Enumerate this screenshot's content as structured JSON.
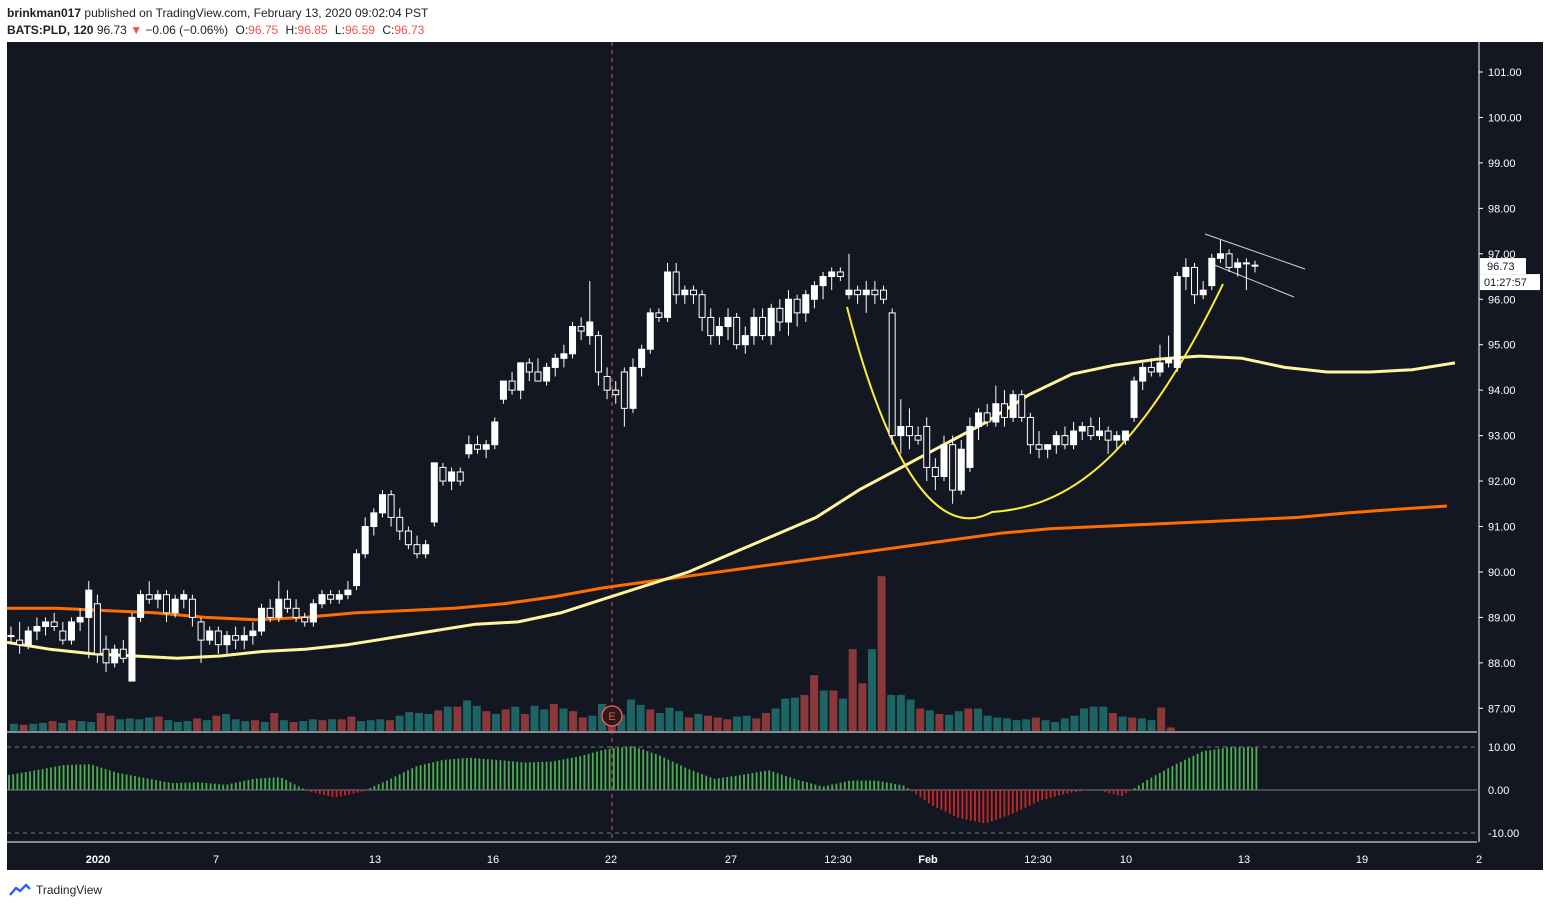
{
  "header": {
    "author": "brinkman017",
    "published_text": "published on TradingView.com, February 13, 2020 09:02:04 PST",
    "symbol": "BATS:PLD, 120",
    "last_price": "96.73",
    "change_arrow": "▼",
    "change": "−0.06 (−0.06%)",
    "open_label": "O:",
    "open": "96.75",
    "high_label": "H:",
    "high": "96.85",
    "low_label": "L:",
    "low": "96.59",
    "close_label": "C:",
    "close": "96.73"
  },
  "chart_data": {
    "type": "candlestick",
    "symbol": "BATS:PLD",
    "interval": "120",
    "price_axis": {
      "min": 86.5,
      "max": 101.5,
      "ticks": [
        "101.00",
        "100.00",
        "99.00",
        "98.00",
        "97.00",
        "96.00",
        "95.00",
        "94.00",
        "93.00",
        "92.00",
        "91.00",
        "90.00",
        "89.00",
        "88.00",
        "87.00"
      ]
    },
    "osc_axis": {
      "ticks": [
        "10.00",
        "0.00",
        "-10.00"
      ]
    },
    "time_labels": [
      "2020",
      "7",
      "13",
      "16",
      "22",
      "27",
      "12:30",
      "Feb",
      "12:30",
      "10",
      "13",
      "19",
      "2"
    ],
    "price_tag": "96.73",
    "countdown_tag": "01:27:57",
    "event_marker": "E",
    "colors": {
      "background": "#131722",
      "candle_up": "#ffffff",
      "candle_down": "#ffffff",
      "ma_fast": "#fff59d",
      "ma_slow": "#ff6d00",
      "curve": "#ffeb3b",
      "vol_up": "#26a69a",
      "vol_down": "#ef5350",
      "osc_up": "#00e676",
      "osc_down": "#b71c1c"
    },
    "ohlc": [
      [
        88.6,
        88.8,
        88.4,
        88.6
      ],
      [
        88.5,
        88.9,
        88.2,
        88.4
      ],
      [
        88.4,
        88.8,
        88.3,
        88.7
      ],
      [
        88.7,
        89.0,
        88.5,
        88.8
      ],
      [
        88.8,
        89.0,
        88.6,
        88.9
      ],
      [
        88.9,
        89.1,
        88.7,
        88.8
      ],
      [
        88.7,
        88.9,
        88.4,
        88.5
      ],
      [
        88.5,
        89.0,
        88.4,
        88.9
      ],
      [
        88.9,
        89.2,
        88.7,
        89.0
      ],
      [
        89.0,
        89.8,
        88.1,
        89.6
      ],
      [
        89.3,
        89.5,
        88.0,
        88.2
      ],
      [
        88.3,
        88.6,
        87.8,
        88.0
      ],
      [
        88.0,
        88.4,
        87.9,
        88.3
      ],
      [
        88.3,
        88.5,
        88.0,
        88.1
      ],
      [
        87.6,
        89.1,
        87.6,
        89.0
      ],
      [
        89.0,
        89.6,
        88.9,
        89.5
      ],
      [
        89.5,
        89.8,
        89.3,
        89.4
      ],
      [
        89.4,
        89.6,
        89.2,
        89.5
      ],
      [
        89.5,
        89.6,
        88.9,
        89.1
      ],
      [
        89.1,
        89.5,
        89.0,
        89.4
      ],
      [
        89.4,
        89.6,
        89.2,
        89.5
      ],
      [
        89.4,
        89.5,
        88.8,
        89.0
      ],
      [
        88.9,
        89.0,
        88.0,
        88.5
      ],
      [
        88.5,
        88.8,
        88.4,
        88.7
      ],
      [
        88.7,
        88.8,
        88.2,
        88.4
      ],
      [
        88.4,
        88.7,
        88.2,
        88.6
      ],
      [
        88.6,
        88.8,
        88.3,
        88.5
      ],
      [
        88.5,
        88.8,
        88.3,
        88.6
      ],
      [
        88.6,
        88.9,
        88.4,
        88.7
      ],
      [
        88.7,
        89.3,
        88.6,
        89.2
      ],
      [
        89.2,
        89.4,
        88.9,
        89.0
      ],
      [
        89.0,
        89.8,
        88.9,
        89.4
      ],
      [
        89.4,
        89.6,
        89.1,
        89.2
      ],
      [
        89.2,
        89.4,
        88.9,
        89.0
      ],
      [
        89.0,
        89.1,
        88.8,
        88.9
      ],
      [
        88.9,
        89.4,
        88.8,
        89.3
      ],
      [
        89.3,
        89.6,
        89.2,
        89.5
      ],
      [
        89.5,
        89.6,
        89.3,
        89.4
      ],
      [
        89.4,
        89.6,
        89.3,
        89.5
      ],
      [
        89.5,
        89.8,
        89.4,
        89.6
      ],
      [
        89.7,
        90.5,
        89.6,
        90.4
      ],
      [
        90.4,
        91.2,
        90.3,
        91.0
      ],
      [
        91.0,
        91.4,
        90.8,
        91.3
      ],
      [
        91.3,
        91.8,
        91.2,
        91.7
      ],
      [
        91.7,
        91.8,
        91.0,
        91.2
      ],
      [
        91.2,
        91.4,
        90.7,
        90.9
      ],
      [
        90.9,
        91.0,
        90.5,
        90.6
      ],
      [
        90.6,
        90.8,
        90.3,
        90.4
      ],
      [
        90.4,
        90.7,
        90.3,
        90.6
      ],
      [
        91.1,
        92.4,
        91.0,
        92.4
      ],
      [
        92.3,
        92.4,
        91.9,
        92.0
      ],
      [
        92.0,
        92.3,
        91.8,
        92.2
      ],
      [
        92.2,
        92.3,
        91.9,
        92.0
      ],
      [
        92.6,
        93.0,
        92.5,
        92.8
      ],
      [
        92.8,
        93.0,
        92.6,
        92.7
      ],
      [
        92.7,
        92.9,
        92.5,
        92.8
      ],
      [
        92.8,
        93.4,
        92.7,
        93.3
      ],
      [
        93.8,
        94.2,
        93.7,
        94.2
      ],
      [
        94.2,
        94.4,
        93.9,
        94.0
      ],
      [
        94.0,
        94.6,
        93.8,
        94.6
      ],
      [
        94.6,
        94.7,
        94.2,
        94.4
      ],
      [
        94.4,
        94.7,
        94.2,
        94.2
      ],
      [
        94.2,
        94.6,
        94.1,
        94.5
      ],
      [
        94.5,
        94.8,
        94.3,
        94.7
      ],
      [
        94.7,
        95.0,
        94.5,
        94.8
      ],
      [
        94.8,
        95.5,
        94.7,
        95.4
      ],
      [
        95.4,
        95.6,
        95.1,
        95.3
      ],
      [
        95.2,
        96.4,
        95.0,
        95.5
      ],
      [
        95.2,
        95.3,
        94.1,
        94.4
      ],
      [
        94.3,
        94.5,
        93.8,
        94.0
      ],
      [
        94.0,
        94.2,
        93.7,
        93.9
      ],
      [
        94.4,
        94.5,
        93.2,
        93.6
      ],
      [
        93.6,
        94.7,
        93.5,
        94.5
      ],
      [
        94.5,
        95.0,
        94.3,
        94.9
      ],
      [
        94.9,
        95.8,
        94.8,
        95.7
      ],
      [
        95.7,
        95.8,
        95.5,
        95.6
      ],
      [
        95.6,
        96.8,
        95.5,
        96.6
      ],
      [
        96.6,
        96.8,
        95.9,
        96.1
      ],
      [
        96.1,
        96.3,
        95.9,
        96.2
      ],
      [
        96.2,
        96.3,
        95.9,
        96.1
      ],
      [
        96.1,
        96.2,
        95.3,
        95.6
      ],
      [
        95.6,
        95.8,
        95.0,
        95.2
      ],
      [
        95.2,
        95.6,
        95.0,
        95.4
      ],
      [
        95.4,
        95.8,
        95.1,
        95.6
      ],
      [
        95.6,
        95.7,
        94.9,
        95.0
      ],
      [
        95.0,
        95.4,
        94.8,
        95.2
      ],
      [
        95.2,
        95.8,
        95.0,
        95.6
      ],
      [
        95.6,
        95.8,
        95.1,
        95.2
      ],
      [
        95.2,
        95.9,
        95.0,
        95.8
      ],
      [
        95.8,
        96.0,
        95.3,
        95.5
      ],
      [
        95.5,
        96.2,
        95.2,
        96.0
      ],
      [
        96.0,
        96.1,
        95.4,
        95.7
      ],
      [
        95.7,
        96.2,
        95.5,
        96.1
      ],
      [
        96.0,
        96.4,
        95.8,
        96.3
      ],
      [
        96.3,
        96.6,
        96.0,
        96.5
      ],
      [
        96.5,
        96.7,
        96.2,
        96.6
      ],
      [
        96.6,
        96.7,
        96.4,
        96.5
      ],
      [
        96.1,
        97.0,
        96.0,
        96.2
      ],
      [
        96.2,
        96.3,
        95.9,
        96.1
      ],
      [
        96.1,
        96.4,
        95.7,
        96.2
      ],
      [
        96.2,
        96.4,
        95.9,
        96.1
      ],
      [
        96.2,
        96.3,
        95.9,
        96.0
      ],
      [
        95.7,
        95.8,
        92.8,
        93.0
      ],
      [
        93.0,
        93.8,
        92.6,
        93.2
      ],
      [
        93.2,
        93.6,
        92.7,
        93.0
      ],
      [
        93.0,
        93.2,
        92.8,
        92.9
      ],
      [
        93.2,
        93.4,
        92.0,
        92.3
      ],
      [
        92.3,
        92.5,
        91.8,
        92.1
      ],
      [
        92.1,
        93.0,
        92.0,
        92.8
      ],
      [
        92.8,
        93.0,
        91.5,
        91.8
      ],
      [
        91.8,
        92.9,
        91.7,
        92.7
      ],
      [
        92.3,
        93.4,
        92.2,
        93.2
      ],
      [
        93.2,
        93.6,
        92.9,
        93.5
      ],
      [
        93.5,
        93.7,
        93.2,
        93.3
      ],
      [
        93.3,
        94.1,
        93.2,
        93.7
      ],
      [
        93.7,
        94.0,
        93.2,
        93.4
      ],
      [
        93.4,
        94.0,
        93.3,
        93.9
      ],
      [
        93.9,
        94.0,
        93.3,
        93.4
      ],
      [
        93.4,
        93.5,
        92.6,
        92.8
      ],
      [
        92.8,
        93.1,
        92.5,
        92.7
      ],
      [
        92.7,
        92.8,
        92.5,
        92.8
      ],
      [
        92.8,
        93.1,
        92.6,
        93.0
      ],
      [
        93.0,
        93.2,
        92.7,
        92.8
      ],
      [
        92.8,
        93.3,
        92.7,
        93.1
      ],
      [
        93.1,
        93.3,
        92.9,
        93.2
      ],
      [
        93.2,
        93.4,
        92.9,
        93.0
      ],
      [
        93.0,
        93.4,
        92.9,
        93.1
      ],
      [
        93.1,
        93.2,
        92.6,
        92.9
      ],
      [
        92.9,
        93.1,
        92.7,
        93.0
      ],
      [
        92.9,
        93.1,
        92.8,
        93.1
      ],
      [
        93.4,
        94.3,
        93.3,
        94.2
      ],
      [
        94.2,
        94.6,
        94.0,
        94.5
      ],
      [
        94.5,
        94.7,
        94.3,
        94.4
      ],
      [
        94.4,
        95.0,
        94.3,
        94.6
      ],
      [
        94.6,
        95.2,
        94.5,
        94.7
      ],
      [
        94.5,
        96.6,
        94.4,
        96.5
      ],
      [
        96.5,
        96.9,
        96.2,
        96.7
      ],
      [
        96.7,
        96.8,
        95.9,
        96.1
      ],
      [
        96.1,
        96.4,
        96.0,
        96.2
      ],
      [
        96.3,
        97.0,
        96.2,
        96.9
      ],
      [
        96.9,
        97.3,
        96.8,
        97.0
      ],
      [
        97.0,
        97.1,
        96.6,
        96.7
      ],
      [
        96.7,
        96.9,
        96.5,
        96.8
      ],
      [
        96.8,
        96.9,
        96.2,
        96.8
      ],
      [
        96.75,
        96.85,
        96.59,
        96.73
      ]
    ],
    "ma_fast": [
      88.45,
      88.3,
      88.2,
      88.15,
      88.1,
      88.15,
      88.25,
      88.3,
      88.4,
      88.55,
      88.7,
      88.85,
      88.9,
      89.1,
      89.4,
      89.7,
      90.0,
      90.4,
      90.8,
      91.2,
      91.8,
      92.3,
      92.8,
      93.3,
      93.9,
      94.35,
      94.55,
      94.68,
      94.75,
      94.7,
      94.5,
      94.4,
      94.4,
      94.45,
      94.6
    ],
    "ma_slow": [
      89.2,
      89.2,
      89.15,
      89.1,
      89.0,
      88.95,
      89.0,
      89.1,
      89.15,
      89.2,
      89.3,
      89.45,
      89.65,
      89.8,
      89.95,
      90.1,
      90.25,
      90.4,
      90.55,
      90.7,
      90.85,
      90.95,
      91.0,
      91.05,
      91.1,
      91.15,
      91.2,
      91.3,
      91.38,
      91.45
    ],
    "volume": [
      [
        1,
        8
      ],
      [
        0,
        7
      ],
      [
        1,
        8
      ],
      [
        1,
        9
      ],
      [
        0,
        11
      ],
      [
        1,
        9
      ],
      [
        0,
        12
      ],
      [
        1,
        11
      ],
      [
        1,
        10
      ],
      [
        0,
        20
      ],
      [
        0,
        17
      ],
      [
        1,
        13
      ],
      [
        1,
        14
      ],
      [
        1,
        13
      ],
      [
        1,
        15
      ],
      [
        0,
        16
      ],
      [
        1,
        12
      ],
      [
        1,
        10
      ],
      [
        1,
        11
      ],
      [
        0,
        14
      ],
      [
        1,
        12
      ],
      [
        0,
        17
      ],
      [
        1,
        19
      ],
      [
        1,
        13
      ],
      [
        1,
        11
      ],
      [
        0,
        12
      ],
      [
        1,
        10
      ],
      [
        0,
        20
      ],
      [
        1,
        12
      ],
      [
        0,
        10
      ],
      [
        1,
        11
      ],
      [
        1,
        13
      ],
      [
        0,
        12
      ],
      [
        1,
        13
      ],
      [
        0,
        13
      ],
      [
        0,
        16
      ],
      [
        1,
        11
      ],
      [
        1,
        12
      ],
      [
        1,
        13
      ],
      [
        0,
        12
      ],
      [
        1,
        17
      ],
      [
        1,
        21
      ],
      [
        1,
        20
      ],
      [
        1,
        19
      ],
      [
        0,
        23
      ],
      [
        1,
        27
      ],
      [
        0,
        27
      ],
      [
        1,
        34
      ],
      [
        1,
        28
      ],
      [
        0,
        22
      ],
      [
        1,
        19
      ],
      [
        0,
        24
      ],
      [
        1,
        27
      ],
      [
        0,
        19
      ],
      [
        1,
        28
      ],
      [
        1,
        24
      ],
      [
        0,
        30
      ],
      [
        1,
        25
      ],
      [
        0,
        22
      ],
      [
        0,
        15
      ],
      [
        1,
        17
      ],
      [
        1,
        30
      ],
      [
        0,
        25
      ],
      [
        1,
        18
      ],
      [
        1,
        35
      ],
      [
        1,
        29
      ],
      [
        0,
        24
      ],
      [
        1,
        20
      ],
      [
        1,
        26
      ],
      [
        1,
        22
      ],
      [
        0,
        15
      ],
      [
        1,
        19
      ],
      [
        0,
        17
      ],
      [
        0,
        15
      ],
      [
        0,
        13
      ],
      [
        1,
        16
      ],
      [
        1,
        17
      ],
      [
        0,
        14
      ],
      [
        0,
        20
      ],
      [
        1,
        25
      ],
      [
        1,
        36
      ],
      [
        1,
        37
      ],
      [
        0,
        40
      ],
      [
        0,
        62
      ],
      [
        1,
        45
      ],
      [
        0,
        45
      ],
      [
        1,
        36
      ],
      [
        0,
        91
      ],
      [
        0,
        53
      ],
      [
        1,
        91
      ],
      [
        0,
        172
      ],
      [
        1,
        40
      ],
      [
        1,
        40
      ],
      [
        1,
        35
      ],
      [
        0,
        25
      ],
      [
        1,
        23
      ],
      [
        0,
        19
      ],
      [
        1,
        18
      ],
      [
        1,
        22
      ],
      [
        0,
        25
      ],
      [
        1,
        25
      ],
      [
        1,
        17
      ],
      [
        1,
        15
      ],
      [
        1,
        14
      ],
      [
        1,
        12
      ],
      [
        1,
        13
      ],
      [
        0,
        15
      ],
      [
        1,
        12
      ],
      [
        1,
        10
      ],
      [
        1,
        14
      ],
      [
        1,
        17
      ],
      [
        1,
        25
      ],
      [
        1,
        27
      ],
      [
        1,
        27
      ],
      [
        0,
        20
      ],
      [
        1,
        16
      ],
      [
        0,
        15
      ],
      [
        1,
        14
      ],
      [
        1,
        12
      ],
      [
        0,
        26
      ],
      [
        0,
        4
      ]
    ],
    "oscillator": [
      3.5,
      4.6,
      5.8,
      6.0,
      4.0,
      2.8,
      1.6,
      1.8,
      1.2,
      2.6,
      3.0,
      -0.2,
      -1.8,
      -0.4,
      2.4,
      5.5,
      7.0,
      7.5,
      7.0,
      6.4,
      6.6,
      7.8,
      9.5,
      10.2,
      8.0,
      5.0,
      2.6,
      3.5,
      4.6,
      2.5,
      0.8,
      2.2,
      2.2,
      1.0,
      -3.5,
      -6.5,
      -7.8,
      -5.5,
      -2.5,
      -0.8,
      0.2,
      -1.5,
      2.5,
      6.0,
      9.0,
      10.0,
      9.9
    ]
  },
  "footer": {
    "brand": "TradingView"
  }
}
